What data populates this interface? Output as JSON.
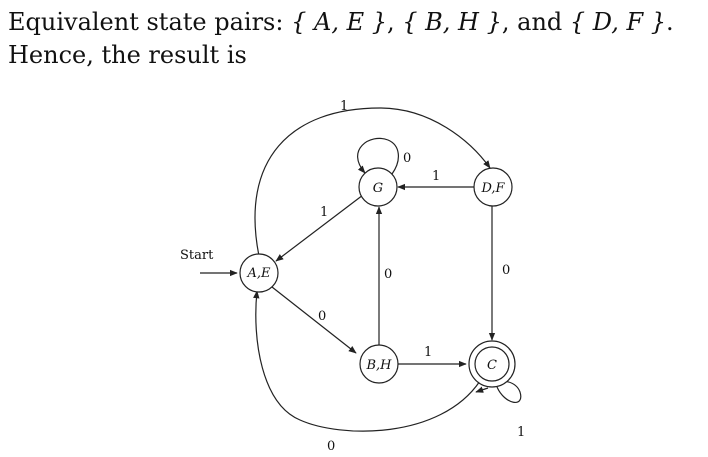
{
  "intro": {
    "line1_prefix": "Equivalent state pairs: ",
    "pair1": "{ A, E }",
    "sep1": ", ",
    "pair2": "{ B, H }",
    "sep2": ", and ",
    "pair3": "{ D, F }",
    "line1_suffix": ".",
    "line2": "Hence, the result is"
  },
  "diagram": {
    "start_label": "Start",
    "states": [
      {
        "id": "AE",
        "label": "A,E",
        "initial": true,
        "accepting": false
      },
      {
        "id": "G",
        "label": "G",
        "initial": false,
        "accepting": false
      },
      {
        "id": "DF",
        "label": "D,F",
        "initial": false,
        "accepting": false
      },
      {
        "id": "BH",
        "label": "B,H",
        "initial": false,
        "accepting": false
      },
      {
        "id": "C",
        "label": "C",
        "initial": false,
        "accepting": true
      }
    ],
    "transitions": [
      {
        "from": "AE",
        "to": "DF",
        "symbol": "1"
      },
      {
        "from": "AE",
        "to": "BH",
        "symbol": "0"
      },
      {
        "from": "G",
        "to": "G",
        "symbol": "0"
      },
      {
        "from": "G",
        "to": "AE",
        "symbol": "1"
      },
      {
        "from": "DF",
        "to": "G",
        "symbol": "1"
      },
      {
        "from": "DF",
        "to": "C",
        "symbol": "0"
      },
      {
        "from": "BH",
        "to": "G",
        "symbol": "0"
      },
      {
        "from": "BH",
        "to": "C",
        "symbol": "1"
      },
      {
        "from": "C",
        "to": "C",
        "symbol": "1"
      },
      {
        "from": "C",
        "to": "AE",
        "symbol": "0"
      }
    ]
  }
}
